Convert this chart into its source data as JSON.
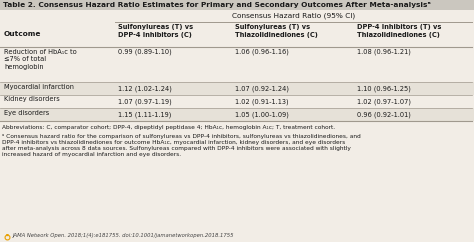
{
  "title": "Table 2. Consensus Hazard Ratio Estimates for Primary and Secondary Outcomes After Meta-analysisᵃ",
  "col_group_header": "Consensus Hazard Ratio (95% CI)",
  "col_headers": [
    "Sulfonylureas (T) vs\nDPP-4 Inhibitors (C)",
    "Sulfonylureas (T) vs\nThiazolidinediones (C)",
    "DPP-4 Inhibitors (T) vs\nThiazolidinediones (C)"
  ],
  "row_header": "Outcome",
  "rows": [
    {
      "outcome": "Reduction of HbA₁c to\n≤7% of total\nhemoglobin",
      "vals": [
        "0.99 (0.89-1.10)",
        "1.06 (0.96-1.16)",
        "1.08 (0.96-1.21)"
      ]
    },
    {
      "outcome": "Myocardial infarction",
      "vals": [
        "1.12 (1.02-1.24)",
        "1.07 (0.92-1.24)",
        "1.10 (0.96-1.25)"
      ]
    },
    {
      "outcome": "Kidney disorders",
      "vals": [
        "1.07 (0.97-1.19)",
        "1.02 (0.91-1.13)",
        "1.02 (0.97-1.07)"
      ]
    },
    {
      "outcome": "Eye disorders",
      "vals": [
        "1.15 (1.11-1.19)",
        "1.05 (1.00-1.09)",
        "0.96 (0.92-1.01)"
      ]
    }
  ],
  "abbrev": "Abbreviations: C, comparator cohort; DPP-4, dipeptidyl peptidase 4; HbA₁c, hemoglobin A₁c; T, treatment cohort.",
  "footnote": "ᵃ Consensus hazard ratio for the comparison of sulfonylureas vs DPP-4 inhibitors, sulfonylureas vs thiazolidinediones, and\nDPP-4 inhibitors vs thiazolidinediones for outcome HbA₁c, myocardial infarction, kidney disorders, and eye disorders\nafter meta-analysis across 8 data sources. Sulfonylureas compared with DPP-4 inhibitors were associated with slightly\nincreased hazard of myocardial infarction and eye disorders.",
  "source": "JAMA Network Open. 2018;1(4):e181755. doi:10.1001/jamanetworkopen.2018.1755",
  "bg_color": "#f2ede6",
  "title_bg": "#cbc7bf",
  "row_alt_bg": "#e6e1d8",
  "text_color": "#1a1a1a",
  "line_color": "#a0998e"
}
